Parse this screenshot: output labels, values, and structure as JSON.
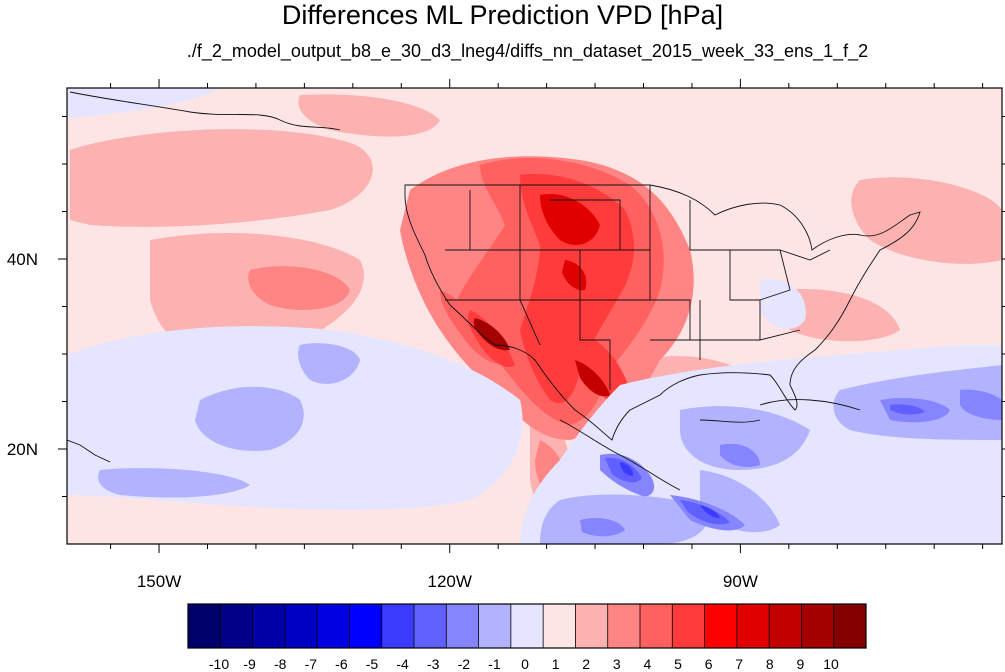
{
  "title": "Differences ML Prediction VPD [hPa]",
  "subtitle": "./f_2_model_output_b8_e_30_d3_lneg4/diffs_nn_dataset_2015_week_33_ens_1_f_2",
  "map": {
    "lon_range": [
      -159.5,
      -63
    ],
    "lat_range": [
      10,
      58
    ],
    "lon_labels": [
      {
        "lon": -150,
        "text": "150W"
      },
      {
        "lon": -120,
        "text": "120W"
      },
      {
        "lon": -90,
        "text": "90W"
      }
    ],
    "lat_labels": [
      {
        "lat": 40,
        "text": "40N"
      },
      {
        "lat": 20,
        "text": "20N"
      }
    ],
    "background_color": "#FDE5E5"
  },
  "colorbar": {
    "labels": [
      "-10",
      "-9",
      "-8",
      "-7",
      "-6",
      "-5",
      "-4",
      "-3",
      "-2",
      "-1",
      "0",
      "1",
      "2",
      "3",
      "4",
      "5",
      "6",
      "7",
      "8",
      "9",
      "10"
    ],
    "colors": [
      "#00006B",
      "#000088",
      "#0000A6",
      "#0000C4",
      "#0000E2",
      "#0000FF",
      "#3B3BFF",
      "#6060FF",
      "#8585FF",
      "#B2B2FF",
      "#E5E5FF",
      "#FDE5E5",
      "#FDB2B2",
      "#FF8585",
      "#FF6060",
      "#FF3B3B",
      "#FF0000",
      "#E00000",
      "#C20000",
      "#A30000",
      "#850000"
    ]
  }
}
